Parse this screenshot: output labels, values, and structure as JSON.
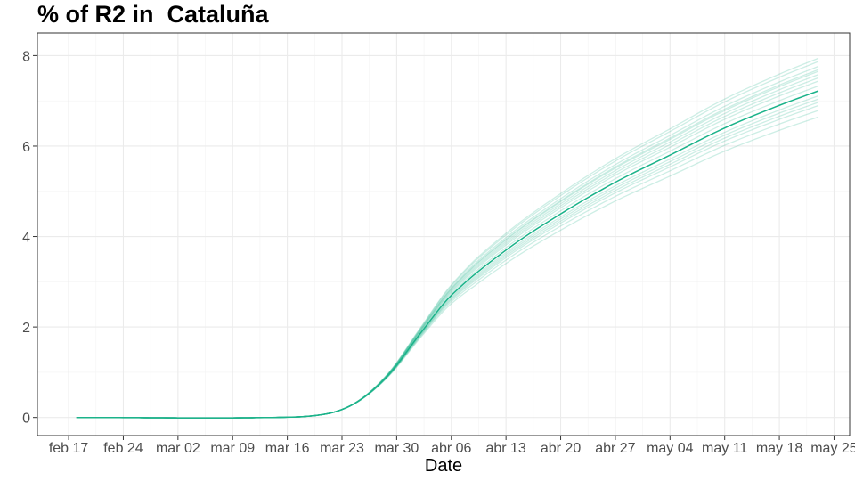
{
  "chart_data": {
    "type": "line",
    "title": "% of R2 in  Cataluña",
    "xlabel": "Date",
    "ylabel": "",
    "x_start": "2020-02-18",
    "x_end": "2020-05-23",
    "xlim": [
      "2020-02-13",
      "2020-05-27"
    ],
    "ylim": [
      -0.4,
      8.5
    ],
    "x_ticks": [
      {
        "date": "2020-02-17",
        "label": "feb 17"
      },
      {
        "date": "2020-02-24",
        "label": "feb 24"
      },
      {
        "date": "2020-03-02",
        "label": "mar 02"
      },
      {
        "date": "2020-03-09",
        "label": "mar 09"
      },
      {
        "date": "2020-03-16",
        "label": "mar 16"
      },
      {
        "date": "2020-03-23",
        "label": "mar 23"
      },
      {
        "date": "2020-03-30",
        "label": "mar 30"
      },
      {
        "date": "2020-04-06",
        "label": "abr 06"
      },
      {
        "date": "2020-04-13",
        "label": "abr 13"
      },
      {
        "date": "2020-04-20",
        "label": "abr 20"
      },
      {
        "date": "2020-04-27",
        "label": "abr 27"
      },
      {
        "date": "2020-05-04",
        "label": "may 04"
      },
      {
        "date": "2020-05-11",
        "label": "may 11"
      },
      {
        "date": "2020-05-18",
        "label": "may 18"
      },
      {
        "date": "2020-05-25",
        "label": "may 25"
      }
    ],
    "y_ticks": [
      0,
      2,
      4,
      6,
      8
    ],
    "grid": true,
    "series_color": "#1bb38a",
    "main_series": {
      "x": [
        "2020-02-18",
        "2020-03-14",
        "2020-03-21",
        "2020-03-25",
        "2020-03-29",
        "2020-04-02",
        "2020-04-06",
        "2020-04-13",
        "2020-04-20",
        "2020-04-27",
        "2020-05-04",
        "2020-05-11",
        "2020-05-18",
        "2020-05-23"
      ],
      "values": [
        0.0,
        0.0,
        0.08,
        0.35,
        0.95,
        1.85,
        2.7,
        3.7,
        4.5,
        5.2,
        5.8,
        6.4,
        6.9,
        7.22
      ]
    },
    "ensemble_scales": [
      0.92,
      0.94,
      0.955,
      0.965,
      0.975,
      0.985,
      1.0,
      1.015,
      1.03,
      1.04,
      1.05,
      1.06,
      1.065,
      1.075,
      1.09,
      1.1
    ]
  }
}
